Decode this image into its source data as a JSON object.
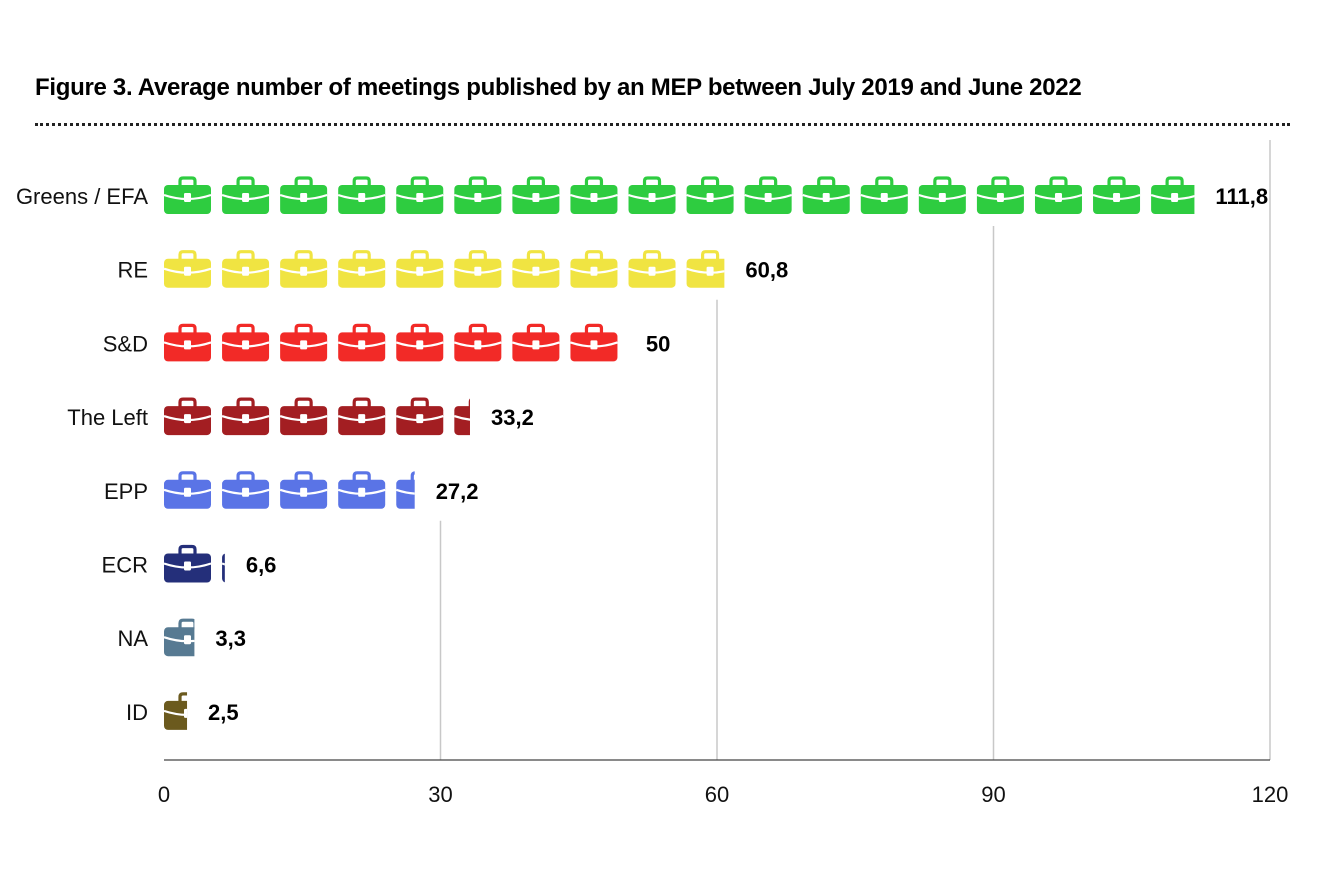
{
  "chart_data": {
    "type": "bar",
    "title": "Figure 3. Average number of meetings published by an MEP between July 2019 and June 2022",
    "categories": [
      "Greens / EFA",
      "RE",
      "S&D",
      "The Left",
      "EPP",
      "ECR",
      "NA",
      "ID"
    ],
    "values": [
      111.8,
      60.8,
      50,
      33.2,
      27.2,
      6.6,
      3.3,
      2.5
    ],
    "value_labels": [
      "111,8",
      "60,8",
      "50",
      "33,2",
      "27,2",
      "6,6",
      "3,3",
      "2,5"
    ],
    "colors": [
      "#2ecc40",
      "#f0e442",
      "#f22a27",
      "#a31e22",
      "#5a74e6",
      "#242f7a",
      "#577a92",
      "#6b5a1e"
    ],
    "xlim": [
      0,
      120
    ],
    "xticks": [
      0,
      30,
      60,
      90,
      120
    ],
    "xtick_labels": [
      "0",
      "30",
      "60",
      "90",
      "120"
    ],
    "xlabel": "",
    "ylabel": "",
    "grid": "vertical",
    "mark": "briefcase-icon",
    "units_per_icon": 6.3
  }
}
